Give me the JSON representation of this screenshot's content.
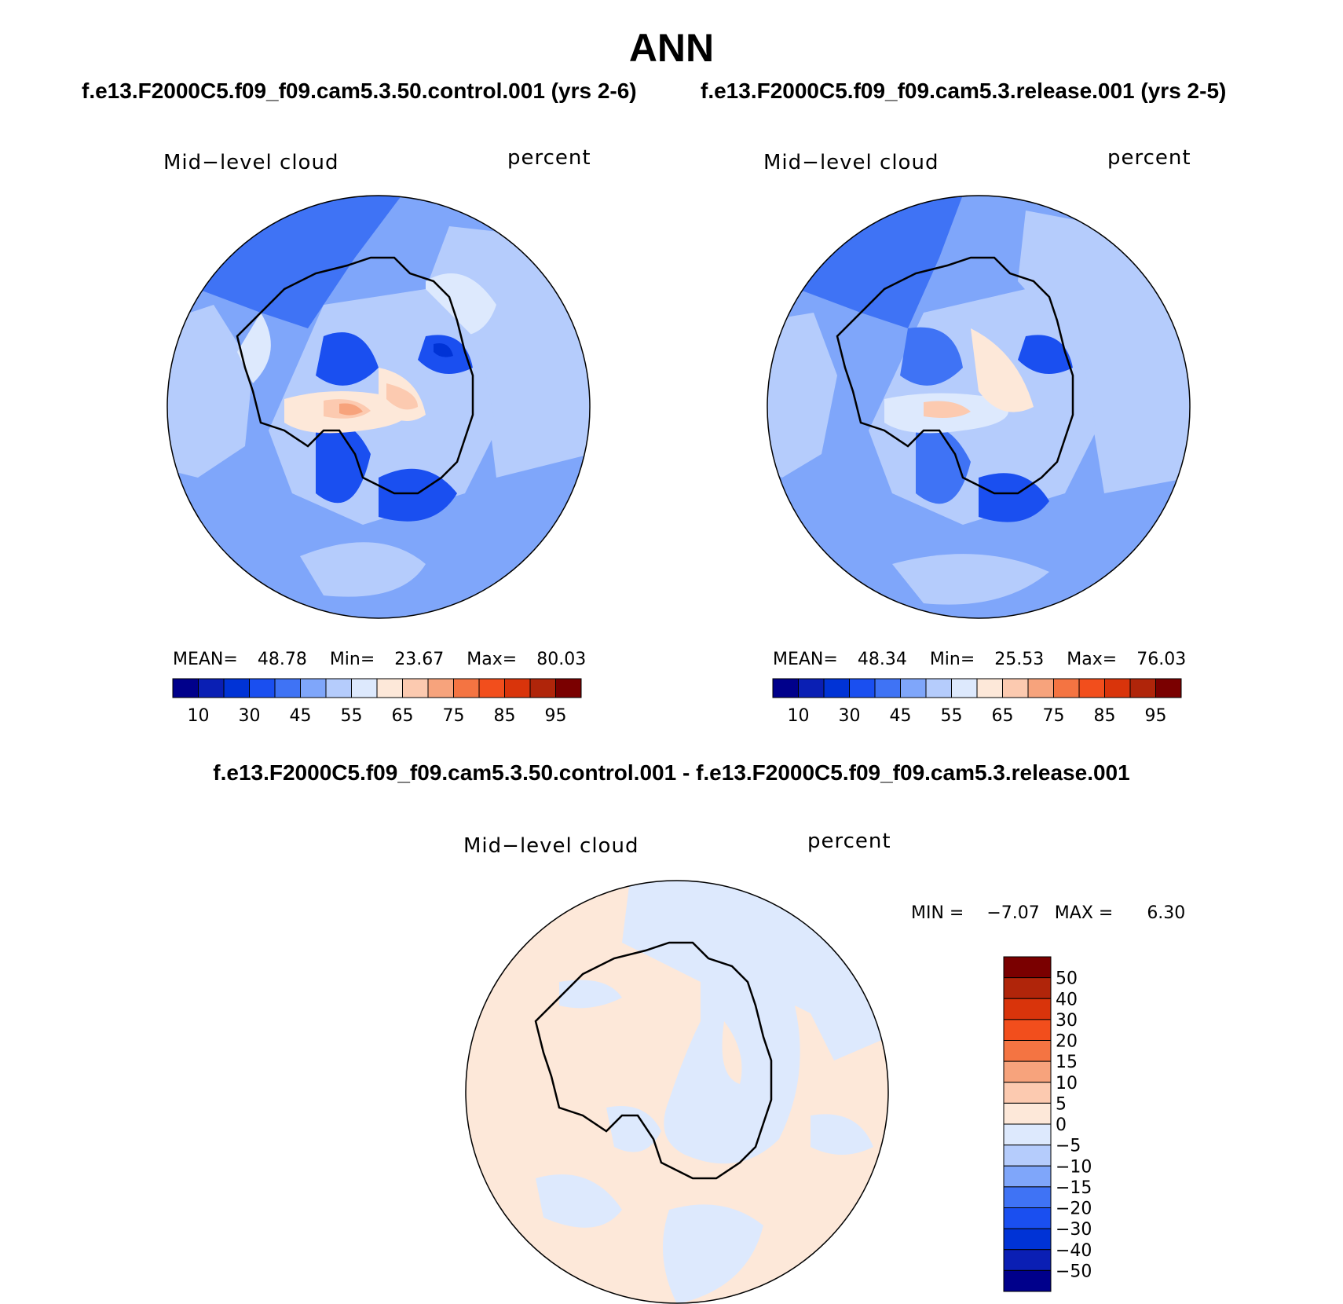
{
  "main_title": "ANN",
  "panels": [
    {
      "case_title": "f.e13.F2000C5.f09_f09.cam5.3.50.control.001 (yrs 2-6)",
      "variable": "Mid−level cloud",
      "units": "percent",
      "stats": {
        "mean_label": "MEAN=",
        "mean": "48.78",
        "min_label": "Min=",
        "min": "23.67",
        "max_label": "Max=",
        "max": "80.03"
      }
    },
    {
      "case_title": "f.e13.F2000C5.f09_f09.cam5.3.release.001 (yrs 2-5)",
      "variable": "Mid−level cloud",
      "units": "percent",
      "stats": {
        "mean_label": "MEAN=",
        "mean": "48.34",
        "min_label": "Min=",
        "min": "25.53",
        "max_label": "Max=",
        "max": "76.03"
      }
    }
  ],
  "horizontal_colorbar": {
    "colors": [
      "#00008b",
      "#0a1fb4",
      "#0033d6",
      "#1a4ff0",
      "#3f73f5",
      "#7fa6fa",
      "#b5ccfc",
      "#dde9fd",
      "#fde8d9",
      "#fccab0",
      "#f7a37c",
      "#f47442",
      "#f24e1c",
      "#d9340b",
      "#b0250a",
      "#7a0000"
    ],
    "labels": [
      "10",
      "30",
      "45",
      "55",
      "65",
      "75",
      "85",
      "95"
    ]
  },
  "difference": {
    "title": "f.e13.F2000C5.f09_f09.cam5.3.50.control.001 - f.e13.F2000C5.f09_f09.cam5.3.release.001",
    "variable": "Mid−level cloud",
    "units": "percent",
    "stats": {
      "min_label": "MIN =",
      "min": "−7.07",
      "max_label": "MAX =",
      "max": "6.30"
    },
    "colorbar": {
      "colors": [
        "#7a0000",
        "#b0250a",
        "#d9340b",
        "#f24e1c",
        "#f47442",
        "#f7a37c",
        "#fccab0",
        "#fde8d9",
        "#dde9fd",
        "#b5ccfc",
        "#7fa6fa",
        "#3f73f5",
        "#1a4ff0",
        "#0033d6",
        "#0a1fb4",
        "#00008b"
      ],
      "labels": [
        "50",
        "40",
        "30",
        "20",
        "15",
        "10",
        "5",
        "0",
        "−5",
        "−10",
        "−15",
        "−20",
        "−30",
        "−40",
        "−50"
      ]
    }
  }
}
